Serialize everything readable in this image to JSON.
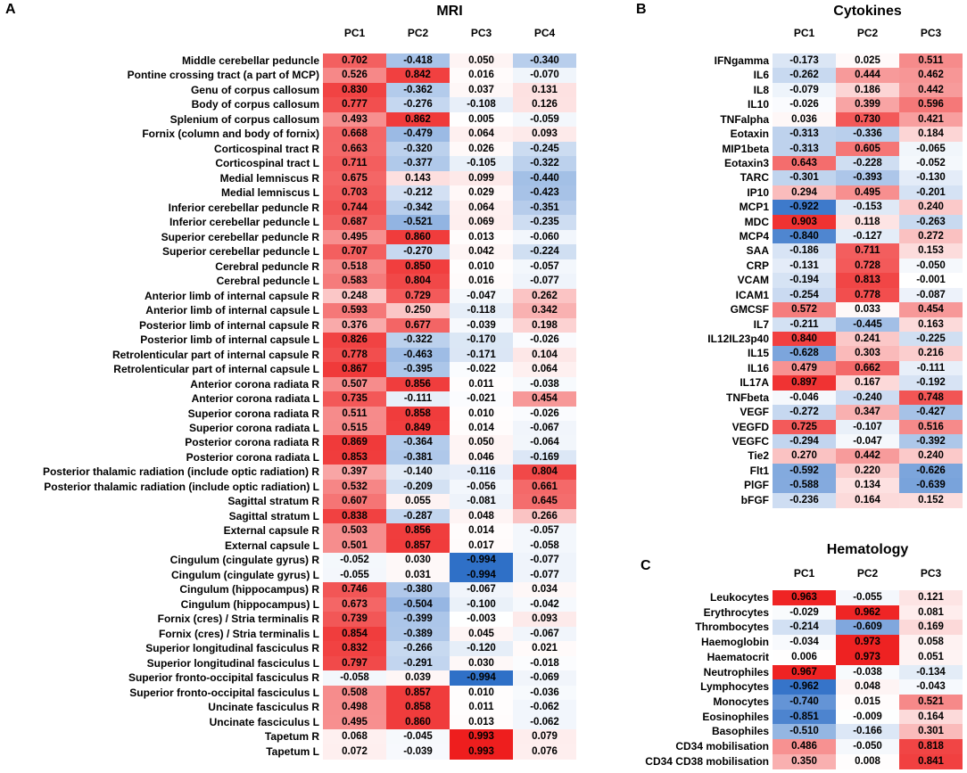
{
  "chart_data": [
    {
      "type": "heatmap",
      "panel": "A",
      "title": "MRI",
      "columns": [
        "PC1",
        "PC2",
        "PC3",
        "PC4"
      ],
      "color_scale": {
        "min": -1,
        "max": 1,
        "low": "#2e6fc7",
        "mid": "#ffffff",
        "high": "#ee1c1c"
      },
      "rows": [
        {
          "label": "Middle cerebellar peduncle",
          "values": [
            "0.702",
            "-0.418",
            "0.050",
            "-0.340"
          ]
        },
        {
          "label": "Pontine crossing tract (a part of MCP)",
          "values": [
            "0.526",
            "0.842",
            "0.016",
            "-0.070"
          ]
        },
        {
          "label": "Genu of corpus callosum",
          "values": [
            "0.830",
            "-0.362",
            "0.037",
            "0.131"
          ]
        },
        {
          "label": "Body of corpus callosum",
          "values": [
            "0.777",
            "-0.276",
            "-0.108",
            "0.126"
          ]
        },
        {
          "label": "Splenium of corpus callosum",
          "values": [
            "0.493",
            "0.862",
            "0.005",
            "-0.059"
          ]
        },
        {
          "label": "Fornix (column and body of fornix)",
          "values": [
            "0.668",
            "-0.479",
            "0.064",
            "0.093"
          ]
        },
        {
          "label": "Corticospinal tract R",
          "values": [
            "0.663",
            "-0.320",
            "0.026",
            "-0.245"
          ]
        },
        {
          "label": "Corticospinal tract L",
          "values": [
            "0.711",
            "-0.377",
            "-0.105",
            "-0.322"
          ]
        },
        {
          "label": "Medial lemniscus R",
          "values": [
            "0.675",
            "0.143",
            "0.099",
            "-0.440"
          ]
        },
        {
          "label": "Medial lemniscus L",
          "values": [
            "0.703",
            "-0.212",
            "0.029",
            "-0.423"
          ]
        },
        {
          "label": "Inferior cerebellar peduncle R",
          "values": [
            "0.744",
            "-0.342",
            "0.064",
            "-0.351"
          ]
        },
        {
          "label": "Inferior cerebellar peduncle L",
          "values": [
            "0.687",
            "-0.521",
            "0.069",
            "-0.235"
          ]
        },
        {
          "label": "Superior cerebellar peduncle R",
          "values": [
            "0.495",
            "0.860",
            "0.013",
            "-0.060"
          ]
        },
        {
          "label": "Superior cerebellar peduncle L",
          "values": [
            "0.707",
            "-0.270",
            "0.042",
            "-0.224"
          ]
        },
        {
          "label": "Cerebral peduncle R",
          "values": [
            "0.518",
            "0.850",
            "0.010",
            "-0.057"
          ]
        },
        {
          "label": "Cerebral peduncle L",
          "values": [
            "0.583",
            "0.804",
            "0.016",
            "-0.077"
          ]
        },
        {
          "label": "Anterior limb of internal capsule R",
          "values": [
            "0.248",
            "0.729",
            "-0.047",
            "0.262"
          ]
        },
        {
          "label": "Anterior limb of internal capsule L",
          "values": [
            "0.593",
            "0.250",
            "-0.118",
            "0.342"
          ]
        },
        {
          "label": "Posterior limb of internal capsule R",
          "values": [
            "0.376",
            "0.677",
            "-0.039",
            "0.198"
          ]
        },
        {
          "label": "Posterior limb of internal capsule L",
          "values": [
            "0.826",
            "-0.322",
            "-0.170",
            "-0.026"
          ]
        },
        {
          "label": "Retrolenticular part of internal capsule R",
          "values": [
            "0.778",
            "-0.463",
            "-0.171",
            "0.104"
          ]
        },
        {
          "label": "Retrolenticular part of internal capsule L",
          "values": [
            "0.867",
            "-0.395",
            "-0.022",
            "0.064"
          ]
        },
        {
          "label": "Anterior corona radiata R",
          "values": [
            "0.507",
            "0.856",
            "0.011",
            "-0.038"
          ]
        },
        {
          "label": "Anterior corona radiata L",
          "values": [
            "0.735",
            "-0.111",
            "-0.021",
            "0.454"
          ]
        },
        {
          "label": "Superior corona radiata R",
          "values": [
            "0.511",
            "0.858",
            "0.010",
            "-0.026"
          ]
        },
        {
          "label": "Superior corona radiata L",
          "values": [
            "0.515",
            "0.849",
            "0.014",
            "-0.067"
          ]
        },
        {
          "label": "Posterior corona radiata R",
          "values": [
            "0.869",
            "-0.364",
            "0.050",
            "-0.064"
          ]
        },
        {
          "label": "Posterior corona radiata L",
          "values": [
            "0.853",
            "-0.381",
            "0.046",
            "-0.169"
          ]
        },
        {
          "label": "Posterior thalamic radiation (include optic radiation) R",
          "values": [
            "0.397",
            "-0.140",
            "-0.116",
            "0.804"
          ]
        },
        {
          "label": "Posterior thalamic radiation (include optic radiation) L",
          "values": [
            "0.532",
            "-0.209",
            "-0.056",
            "0.661"
          ]
        },
        {
          "label": "Sagittal stratum R",
          "values": [
            "0.607",
            "0.055",
            "-0.081",
            "0.645"
          ]
        },
        {
          "label": "Sagittal stratum L",
          "values": [
            "0.838",
            "-0.287",
            "0.048",
            "0.266"
          ]
        },
        {
          "label": "External capsule R",
          "values": [
            "0.503",
            "0.856",
            "0.014",
            "-0.057"
          ]
        },
        {
          "label": "External capsule L",
          "values": [
            "0.501",
            "0.857",
            "0.017",
            "-0.058"
          ]
        },
        {
          "label": "Cingulum (cingulate gyrus) R",
          "values": [
            "-0.052",
            "0.030",
            "-0.994",
            "-0.077"
          ]
        },
        {
          "label": "Cingulum (cingulate gyrus) L",
          "values": [
            "-0.055",
            "0.031",
            "-0.994",
            "-0.077"
          ]
        },
        {
          "label": "Cingulum (hippocampus) R",
          "values": [
            "0.746",
            "-0.380",
            "-0.067",
            "0.034"
          ]
        },
        {
          "label": "Cingulum (hippocampus) L",
          "values": [
            "0.673",
            "-0.504",
            "-0.100",
            "-0.042"
          ]
        },
        {
          "label": "Fornix (cres) / Stria terminalis R",
          "values": [
            "0.739",
            "-0.399",
            "-0.003",
            "0.093"
          ]
        },
        {
          "label": "Fornix (cres) / Stria terminalis L",
          "values": [
            "0.854",
            "-0.389",
            "0.045",
            "-0.067"
          ]
        },
        {
          "label": "Superior longitudinal fasciculus R",
          "values": [
            "0.832",
            "-0.266",
            "-0.120",
            "0.021"
          ]
        },
        {
          "label": "Superior longitudinal fasciculus L",
          "values": [
            "0.797",
            "-0.291",
            "0.030",
            "-0.018"
          ]
        },
        {
          "label": "Superior fronto-occipital fasciculus R",
          "values": [
            "-0.058",
            "0.039",
            "-0.994",
            "-0.069"
          ]
        },
        {
          "label": "Superior fronto-occipital fasciculus L",
          "values": [
            "0.508",
            "0.857",
            "0.010",
            "-0.036"
          ]
        },
        {
          "label": "Uncinate fasciculus R",
          "values": [
            "0.498",
            "0.858",
            "0.011",
            "-0.062"
          ]
        },
        {
          "label": "Uncinate fasciculus L",
          "values": [
            "0.495",
            "0.860",
            "0.013",
            "-0.062"
          ]
        },
        {
          "label": "Tapetum R",
          "values": [
            "0.068",
            "-0.045",
            "0.993",
            "0.079"
          ]
        },
        {
          "label": "Tapetum L",
          "values": [
            "0.072",
            "-0.039",
            "0.993",
            "0.076"
          ]
        }
      ]
    },
    {
      "type": "heatmap",
      "panel": "B",
      "title": "Cytokines",
      "columns": [
        "PC1",
        "PC2",
        "PC3"
      ],
      "color_scale": {
        "min": -1,
        "max": 1,
        "low": "#2e6fc7",
        "mid": "#ffffff",
        "high": "#ee1c1c"
      },
      "rows": [
        {
          "label": "IFNgamma",
          "values": [
            "-0.173",
            "0.025",
            "0.511"
          ]
        },
        {
          "label": "IL6",
          "values": [
            "-0.262",
            "0.444",
            "0.462"
          ]
        },
        {
          "label": "IL8",
          "values": [
            "-0.079",
            "0.186",
            "0.442"
          ]
        },
        {
          "label": "IL10",
          "values": [
            "-0.026",
            "0.399",
            "0.596"
          ]
        },
        {
          "label": "TNFalpha",
          "values": [
            "0.036",
            "0.730",
            "0.421"
          ]
        },
        {
          "label": "Eotaxin",
          "values": [
            "-0.313",
            "-0.336",
            "0.184"
          ]
        },
        {
          "label": "MIP1beta",
          "values": [
            "-0.313",
            "0.605",
            "-0.065"
          ]
        },
        {
          "label": "Eotaxin3",
          "values": [
            "0.643",
            "-0.228",
            "-0.052"
          ]
        },
        {
          "label": "TARC",
          "values": [
            "-0.301",
            "-0.393",
            "-0.130"
          ]
        },
        {
          "label": "IP10",
          "values": [
            "0.294",
            "0.495",
            "-0.201"
          ]
        },
        {
          "label": "MCP1",
          "values": [
            "-0.922",
            "-0.153",
            "0.240"
          ]
        },
        {
          "label": "MDC",
          "values": [
            "0.903",
            "0.118",
            "-0.263"
          ]
        },
        {
          "label": "MCP4",
          "values": [
            "-0.840",
            "-0.127",
            "0.272"
          ]
        },
        {
          "label": "SAA",
          "values": [
            "-0.186",
            "0.711",
            "0.153"
          ]
        },
        {
          "label": "CRP",
          "values": [
            "-0.131",
            "0.728",
            "-0.050"
          ]
        },
        {
          "label": "VCAM",
          "values": [
            "-0.194",
            "0.813",
            "-0.001"
          ]
        },
        {
          "label": "ICAM1",
          "values": [
            "-0.254",
            "0.778",
            "-0.087"
          ]
        },
        {
          "label": "GMCSF",
          "values": [
            "0.572",
            "0.033",
            "0.454"
          ]
        },
        {
          "label": "IL7",
          "values": [
            "-0.211",
            "-0.445",
            "0.163"
          ]
        },
        {
          "label": "IL12IL23p40",
          "values": [
            "0.840",
            "0.241",
            "-0.225"
          ]
        },
        {
          "label": "IL15",
          "values": [
            "-0.628",
            "0.303",
            "0.216"
          ]
        },
        {
          "label": "IL16",
          "values": [
            "0.479",
            "0.662",
            "-0.111"
          ]
        },
        {
          "label": "IL17A",
          "values": [
            "0.897",
            "0.167",
            "-0.192"
          ]
        },
        {
          "label": "TNFbeta",
          "values": [
            "-0.046",
            "-0.240",
            "0.748"
          ]
        },
        {
          "label": "VEGF",
          "values": [
            "-0.272",
            "0.347",
            "-0.427"
          ]
        },
        {
          "label": "VEGFD",
          "values": [
            "0.725",
            "-0.107",
            "0.516"
          ]
        },
        {
          "label": "VEGFC",
          "values": [
            "-0.294",
            "-0.047",
            "-0.392"
          ]
        },
        {
          "label": "Tie2",
          "values": [
            "0.270",
            "0.442",
            "0.240"
          ]
        },
        {
          "label": "Flt1",
          "values": [
            "-0.592",
            "0.220",
            "-0.626"
          ]
        },
        {
          "label": "PlGF",
          "values": [
            "-0.588",
            "0.134",
            "-0.639"
          ]
        },
        {
          "label": "bFGF",
          "values": [
            "-0.236",
            "0.164",
            "0.152"
          ]
        }
      ]
    },
    {
      "type": "heatmap",
      "panel": "C",
      "title": "Hematology",
      "columns": [
        "PC1",
        "PC2",
        "PC3"
      ],
      "color_scale": {
        "min": -1,
        "max": 1,
        "low": "#2e6fc7",
        "mid": "#ffffff",
        "high": "#ee1c1c"
      },
      "rows": [
        {
          "label": "Leukocytes",
          "values": [
            "0.963",
            "-0.055",
            "0.121"
          ]
        },
        {
          "label": "Erythrocytes",
          "values": [
            "-0.029",
            "0.962",
            "0.081"
          ]
        },
        {
          "label": "Thrombocytes",
          "values": [
            "-0.214",
            "-0.609",
            "0.169"
          ]
        },
        {
          "label": "Haemoglobin",
          "values": [
            "-0.034",
            "0.973",
            "0.058"
          ]
        },
        {
          "label": "Haematocrit",
          "values": [
            "0.006",
            "0.973",
            "0.051"
          ]
        },
        {
          "label": "Neutrophiles",
          "values": [
            "0.967",
            "-0.038",
            "-0.134"
          ]
        },
        {
          "label": "Lymphocytes",
          "values": [
            "-0.962",
            "0.048",
            "-0.043"
          ]
        },
        {
          "label": "Monocytes",
          "values": [
            "-0.740",
            "0.015",
            "0.521"
          ]
        },
        {
          "label": "Eosinophiles",
          "values": [
            "-0.851",
            "-0.009",
            "0.164"
          ]
        },
        {
          "label": "Basophiles",
          "values": [
            "-0.510",
            "-0.166",
            "0.301"
          ]
        },
        {
          "label": "CD34 mobilisation",
          "values": [
            "0.486",
            "-0.050",
            "0.818"
          ]
        },
        {
          "label": "CD34 CD38 mobilisation",
          "values": [
            "0.350",
            "0.008",
            "0.841"
          ]
        }
      ]
    }
  ]
}
